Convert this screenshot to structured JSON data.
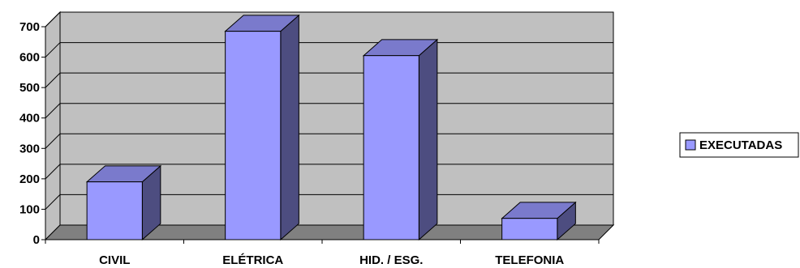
{
  "chart_data": {
    "type": "bar",
    "style": "3d-column",
    "title": "",
    "xlabel": "",
    "ylabel": "",
    "categories": [
      "CIVIL",
      "ELÉTRICA",
      "HID. / ESG.",
      "TELEFONIA"
    ],
    "series": [
      {
        "name": "EXECUTADAS",
        "values": [
          190,
          685,
          605,
          70
        ]
      }
    ],
    "ylim": [
      0,
      700
    ],
    "yticks": [
      0,
      100,
      200,
      300,
      400,
      500,
      600,
      700
    ],
    "ytick_labels": [
      "0",
      "100",
      "200",
      "300",
      "400",
      "500",
      "600",
      "700"
    ],
    "grid": true,
    "legend_position": "right",
    "colors": {
      "bar_front": "#9999ff",
      "bar_top": "#7a7acc",
      "bar_side": "#4d4d80",
      "wall": "#c0c0c0",
      "floor": "#808080",
      "gridline": "#000000"
    }
  }
}
